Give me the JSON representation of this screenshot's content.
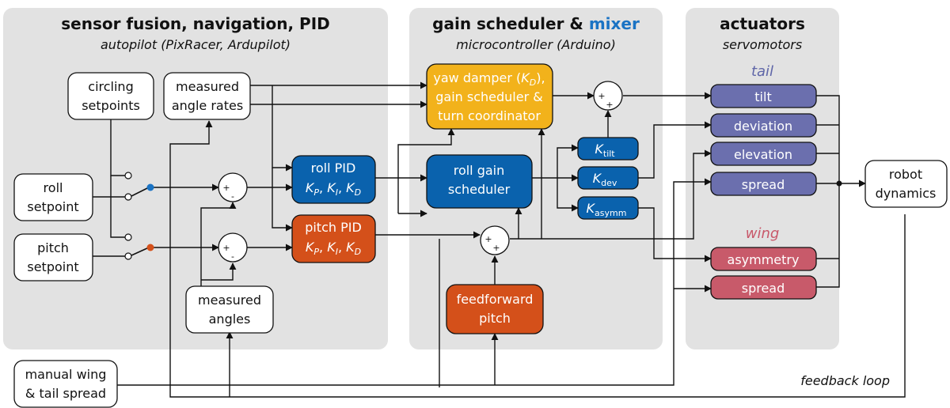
{
  "colors": {
    "panel": "#e2e2e2",
    "blue": "#0a62ad",
    "orange": "#d4501a",
    "yellow": "#f2b21b",
    "tail_block": "#6b6fae",
    "wing_block": "#c85a6a",
    "tail_label": "#5f66a8",
    "wing_label": "#c8586a",
    "mixer": "#1a73c4"
  },
  "panels": {
    "autopilot": {
      "title": "sensor fusion, navigation, PID",
      "subtitle": "autopilot (PixRacer, Ardupilot)"
    },
    "microcontroller": {
      "title_part1": "gain scheduler",
      "title_amp": " & ",
      "title_part2": "mixer",
      "subtitle": "microcontroller (Arduino)"
    },
    "actuators": {
      "title": "actuators",
      "subtitle": "servomotors"
    }
  },
  "blocks": {
    "circling_setpoints": [
      "circling",
      "setpoints"
    ],
    "measured_rates": [
      "measured",
      "angle rates"
    ],
    "roll_setpoint": [
      "roll",
      "setpoint"
    ],
    "pitch_setpoint": [
      "pitch",
      "setpoint"
    ],
    "measured_angles": [
      "measured",
      "angles"
    ],
    "manual_spread": [
      "manual wing",
      "& tail spread"
    ],
    "roll_pid": {
      "title": "roll PID",
      "k": "K",
      "sub_p": "P",
      "sub_i": "I",
      "sub_d": "D",
      "sep": ", "
    },
    "pitch_pid": {
      "title": "pitch PID",
      "k": "K",
      "sub_p": "P",
      "sub_i": "I",
      "sub_d": "D",
      "sep": ", "
    },
    "yaw_damper": {
      "line1": "yaw damper (",
      "k": "K",
      "sub": "D",
      "close": "),",
      "line2": "gain scheduler &",
      "line3": "turn coordinator"
    },
    "roll_gain": [
      "roll gain",
      "scheduler"
    ],
    "feedforward": [
      "feedforward",
      "pitch"
    ],
    "k_tilt": {
      "k": "K",
      "sub": "tilt"
    },
    "k_dev": {
      "k": "K",
      "sub": "dev"
    },
    "k_asymm": {
      "k": "K",
      "sub": "asymm"
    },
    "robot_dynamics": [
      "robot",
      "dynamics"
    ]
  },
  "tail": {
    "label": "tail",
    "items": [
      "tilt",
      "deviation",
      "elevation",
      "spread"
    ]
  },
  "wing": {
    "label": "wing",
    "items": [
      "asymmetry",
      "spread"
    ]
  },
  "summing_signs": {
    "plus": "+",
    "minus": "-"
  },
  "feedback_label": "feedback loop"
}
